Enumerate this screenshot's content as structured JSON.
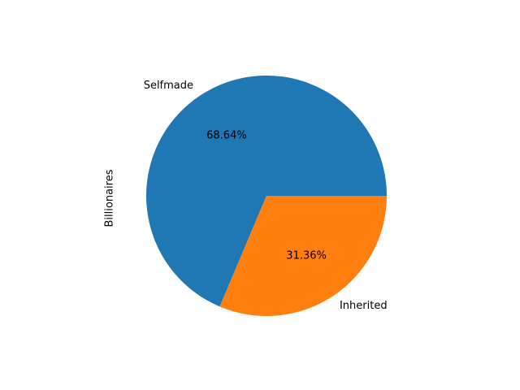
{
  "chart_data": {
    "type": "pie",
    "title": "",
    "ylabel": "Billionaires",
    "categories": [
      "Selfmade",
      "Inherited"
    ],
    "values": [
      68.64,
      31.36
    ],
    "percent_labels": [
      "68.64%",
      "31.36%"
    ],
    "colors": [
      "#1f77b4",
      "#ff7f0e"
    ],
    "start_angle_deg": 0,
    "direction": "counterclockwise",
    "legend": "none"
  }
}
